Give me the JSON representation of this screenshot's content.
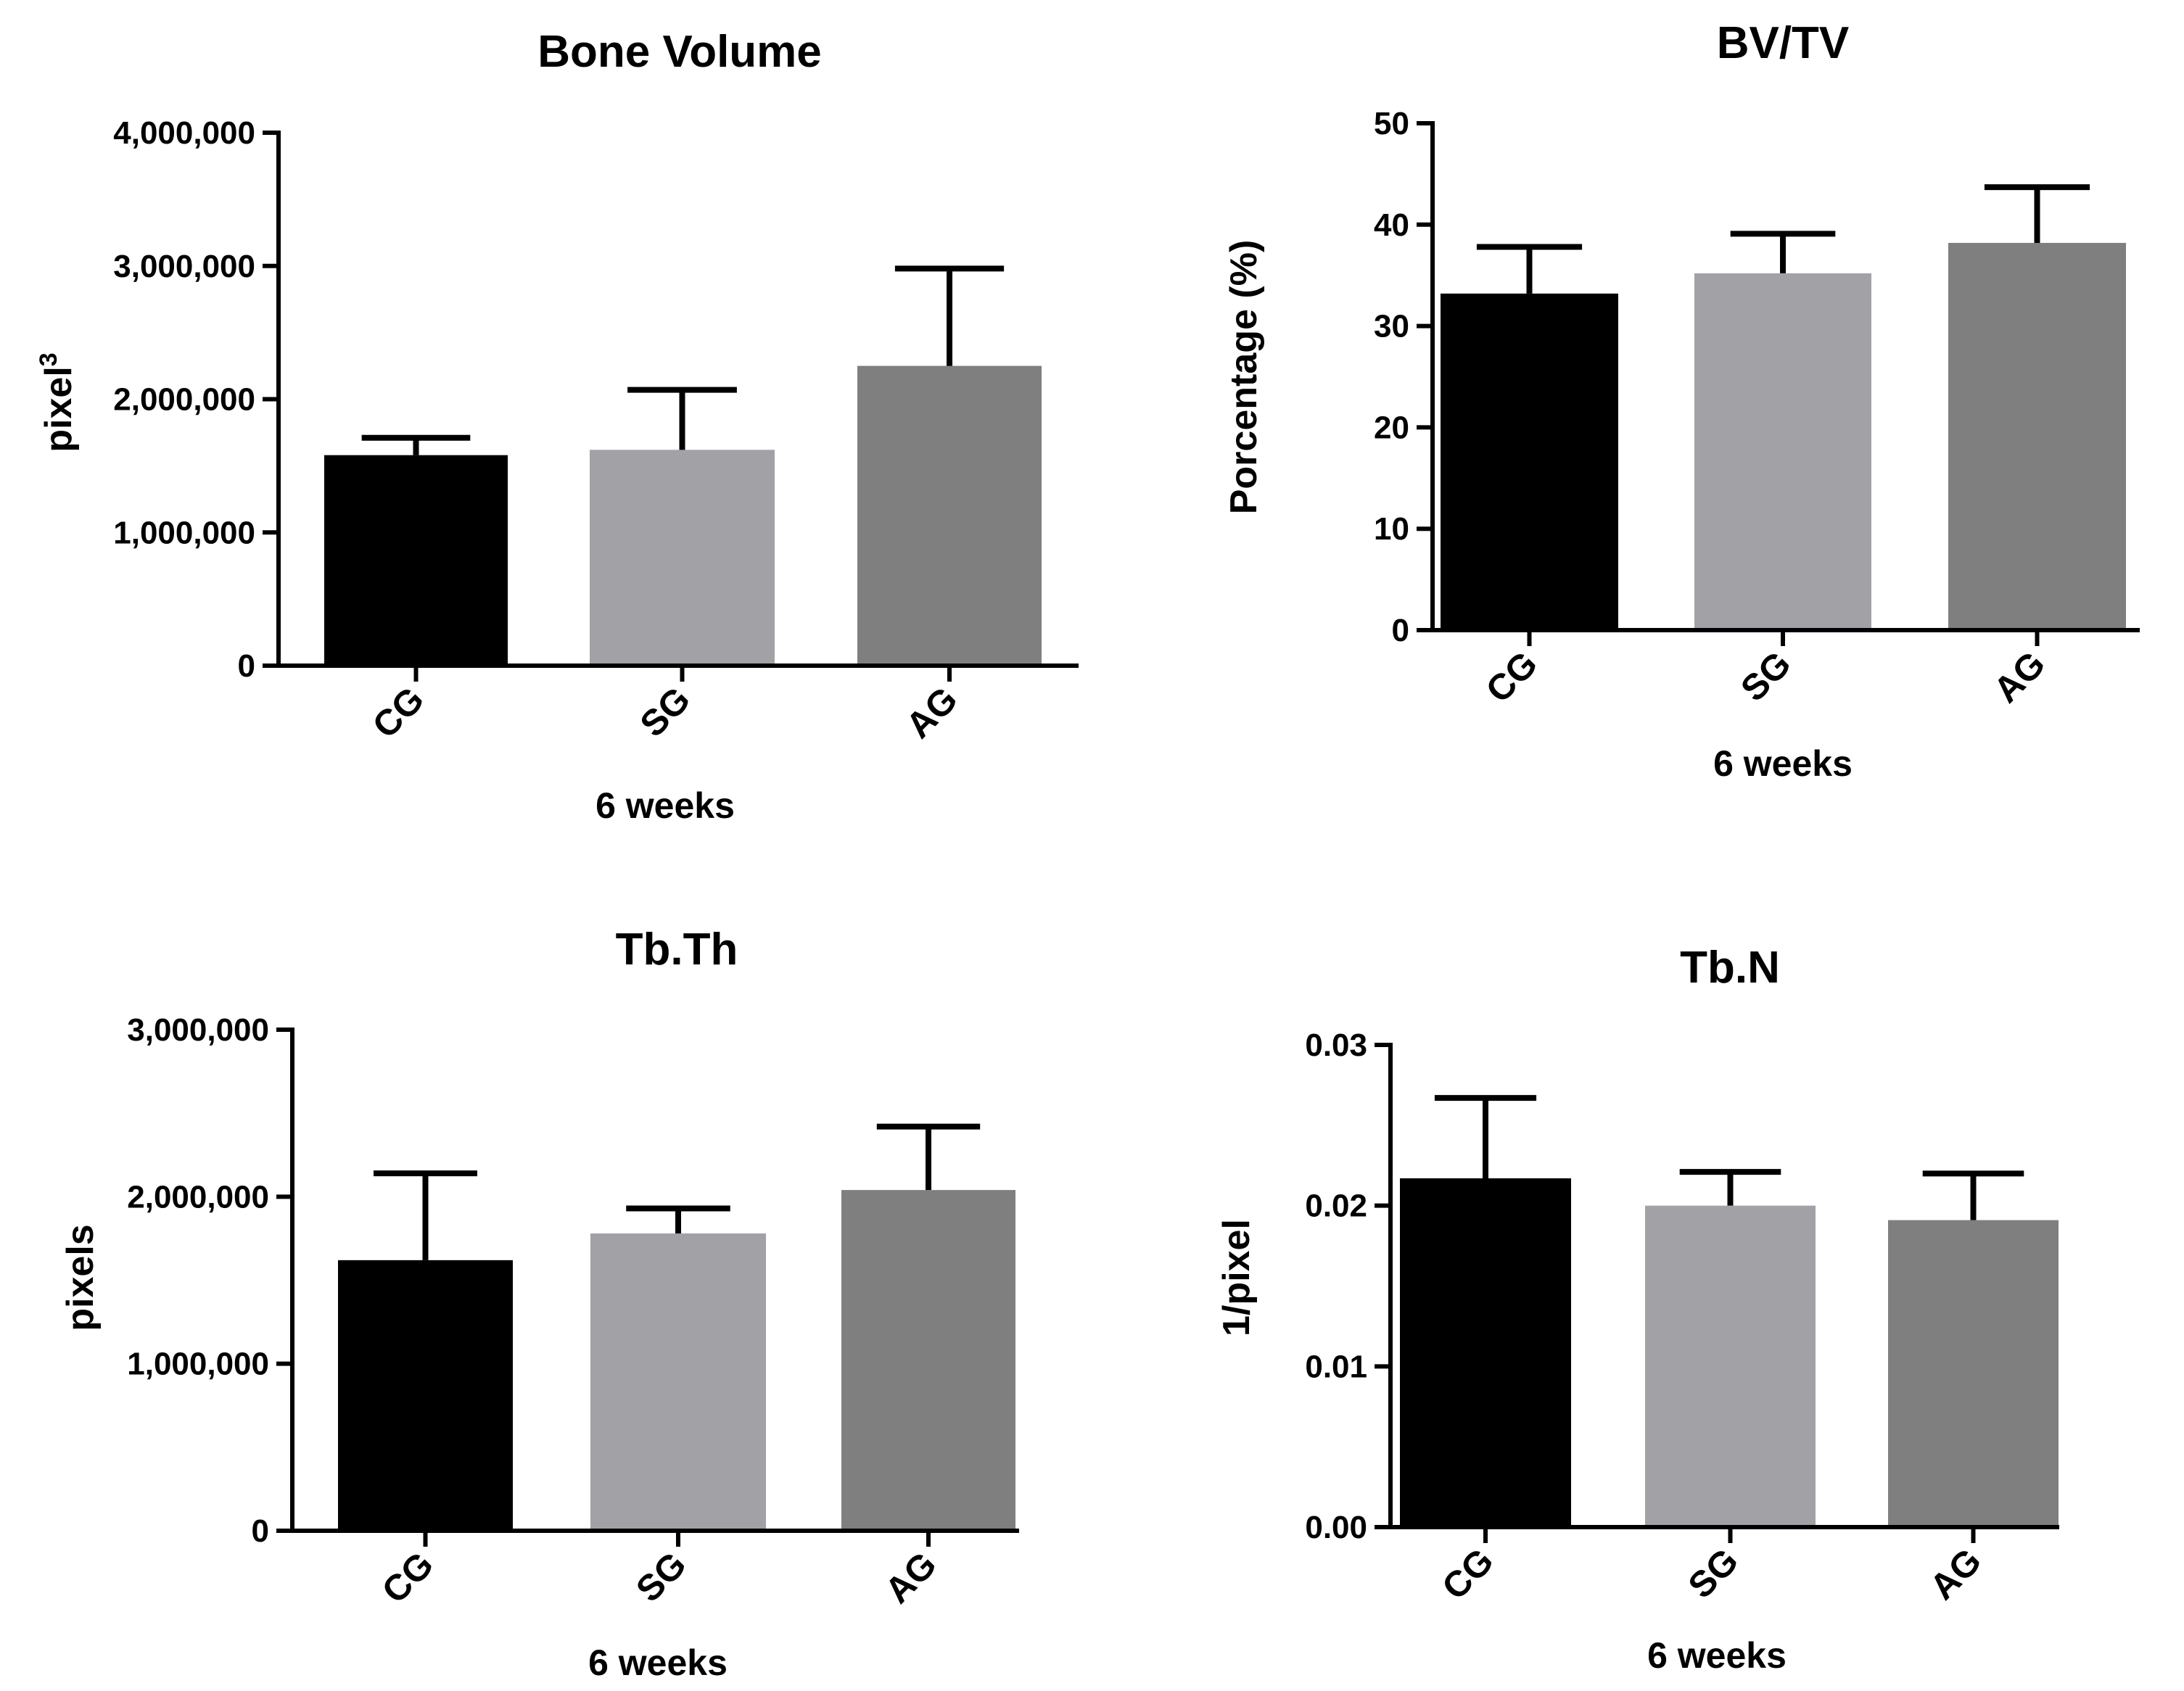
{
  "chart_data": [
    {
      "type": "bar",
      "title": "Bone Volume",
      "xlabel": "6 weeks",
      "ylabel": "pixel",
      "ylabel_superscript": "3",
      "categories": [
        "CG",
        "SG",
        "AG"
      ],
      "values": [
        1580000,
        1620000,
        2250000
      ],
      "errors": [
        130000,
        450000,
        730000
      ],
      "ylim": [
        0,
        4000000
      ],
      "ticks": [
        0,
        1000000,
        2000000,
        3000000,
        4000000
      ],
      "tick_labels": [
        "0",
        "1,000,000",
        "2,000,000",
        "3,000,000",
        "4,000,000"
      ]
    },
    {
      "type": "bar",
      "title": "BV/TV",
      "xlabel": "6 weeks",
      "ylabel": "Porcentage (%)",
      "categories": [
        "CG",
        "SG",
        "AG"
      ],
      "values": [
        33.2,
        35.2,
        38.2
      ],
      "errors": [
        4.6,
        3.9,
        5.5
      ],
      "ylim": [
        0,
        50
      ],
      "ticks": [
        0,
        10,
        20,
        30,
        40,
        50
      ],
      "tick_labels": [
        "0",
        "10",
        "20",
        "30",
        "40",
        "50"
      ]
    },
    {
      "type": "bar",
      "title": "Tb.Th",
      "xlabel": "6 weeks",
      "ylabel": "pixels",
      "categories": [
        "CG",
        "SG",
        "AG"
      ],
      "values": [
        1620000,
        1780000,
        2040000
      ],
      "errors": [
        520000,
        150000,
        380000
      ],
      "ylim": [
        0,
        3000000
      ],
      "ticks": [
        0,
        1000000,
        2000000,
        3000000
      ],
      "tick_labels": [
        "0",
        "1,000,000",
        "2,000,000",
        "3,000,000"
      ]
    },
    {
      "type": "bar",
      "title": "Tb.N",
      "xlabel": "6 weeks",
      "ylabel": "1/pixel",
      "categories": [
        "CG",
        "SG",
        "AG"
      ],
      "values": [
        0.0217,
        0.02,
        0.0191
      ],
      "errors": [
        0.005,
        0.0021,
        0.0029
      ],
      "ylim": [
        0,
        0.03
      ],
      "ticks": [
        0,
        0.01,
        0.02,
        0.03
      ],
      "tick_labels": [
        "0.00",
        "0.01",
        "0.02",
        "0.03"
      ]
    }
  ],
  "colors": {
    "CG": "#000000",
    "SG": "#a2a1a6",
    "AG": "#7f7f7f",
    "axis": "#000000"
  }
}
